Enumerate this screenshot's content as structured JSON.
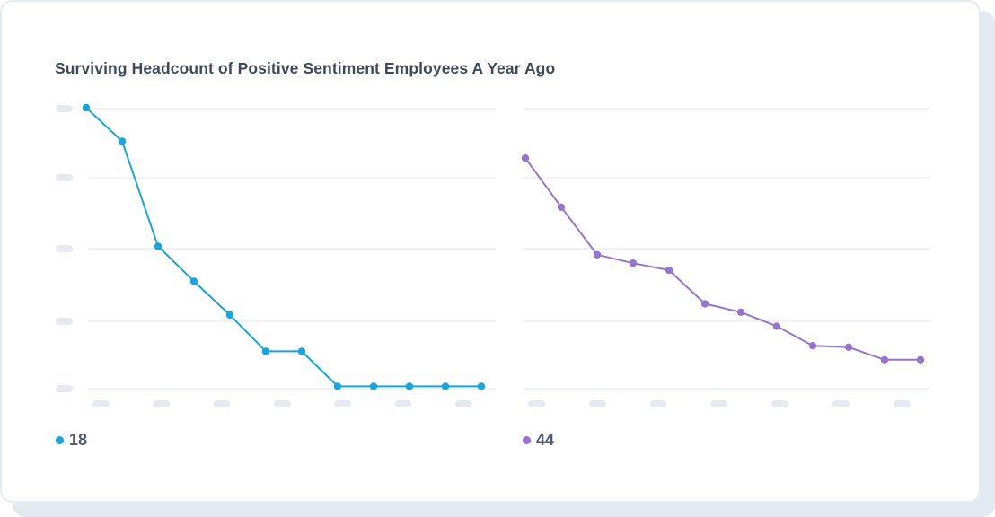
{
  "chart_title": "Surviving Headcount of Positive Sentiment Employees A Year Ago",
  "chart_data": [
    {
      "type": "line",
      "x": [
        1,
        2,
        3,
        4,
        5,
        6,
        7,
        8,
        9,
        10,
        11,
        12
      ],
      "series": [
        {
          "name": "18",
          "color": "#1aa4dd",
          "values": [
            100,
            88,
            50.5,
            38,
            26,
            13,
            13,
            0.5,
            0.5,
            0.5,
            0.5,
            0.5
          ]
        }
      ],
      "ylim": [
        0,
        100
      ],
      "y_gridlines": 5,
      "x_ticks": 7,
      "tick_labels_obscured": true,
      "grid": true,
      "legend": "bottom-left"
    },
    {
      "type": "line",
      "x": [
        1,
        2,
        3,
        4,
        5,
        6,
        7,
        8,
        9,
        10,
        11,
        12
      ],
      "series": [
        {
          "name": "44",
          "color": "#9575cd",
          "values": [
            82,
            64.5,
            47.5,
            44.5,
            42,
            30,
            27,
            22,
            15,
            14.5,
            10,
            10
          ]
        }
      ],
      "ylim": [
        0,
        100
      ],
      "y_gridlines": 5,
      "x_ticks": 7,
      "tick_labels_obscured": true,
      "grid": true,
      "legend": "bottom-left"
    }
  ],
  "colors": {
    "gridline": "#e8ecf1",
    "placeholder_tick": "#e6eaf0"
  }
}
